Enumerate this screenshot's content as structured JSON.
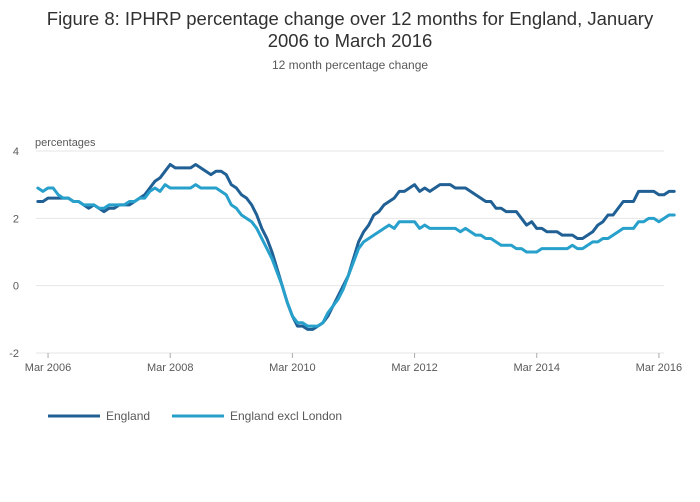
{
  "chart_data": {
    "type": "line",
    "title_line1": "Figure 8: IPHRP percentage change over 12 months for England, January",
    "title_line2": "2006 to March 2016",
    "subtitle": "12 month percentage change",
    "ylabel": "percentages",
    "ylim": [
      -2,
      4
    ],
    "yticks": [
      "4",
      "2",
      "0",
      "-2"
    ],
    "ytick_values": [
      4,
      2,
      0,
      -2
    ],
    "xticks": [
      "Mar 2006",
      "Mar 2008",
      "Mar 2010",
      "Mar 2012",
      "Mar 2014",
      "Mar 2016"
    ],
    "xtick_values": [
      2006.167,
      2008.167,
      2010.167,
      2012.167,
      2014.167,
      2016.167
    ],
    "x_start": 2006.0,
    "x_step": 0.08333333,
    "legend_position": "bottom-left",
    "series": [
      {
        "name": "England",
        "color": "#206095",
        "values": [
          2.5,
          2.5,
          2.6,
          2.6,
          2.6,
          2.6,
          2.6,
          2.5,
          2.5,
          2.4,
          2.3,
          2.4,
          2.3,
          2.2,
          2.3,
          2.3,
          2.4,
          2.4,
          2.4,
          2.5,
          2.6,
          2.7,
          2.9,
          3.1,
          3.2,
          3.4,
          3.6,
          3.5,
          3.5,
          3.5,
          3.5,
          3.6,
          3.5,
          3.4,
          3.3,
          3.4,
          3.4,
          3.3,
          3.0,
          2.9,
          2.7,
          2.6,
          2.4,
          2.1,
          1.7,
          1.4,
          1.0,
          0.5,
          0.0,
          -0.5,
          -0.9,
          -1.2,
          -1.2,
          -1.3,
          -1.3,
          -1.2,
          -1.1,
          -0.9,
          -0.6,
          -0.3,
          0.0,
          0.3,
          0.8,
          1.3,
          1.6,
          1.8,
          2.1,
          2.2,
          2.4,
          2.5,
          2.6,
          2.8,
          2.8,
          2.9,
          3.0,
          2.8,
          2.9,
          2.8,
          2.9,
          3.0,
          3.0,
          3.0,
          2.9,
          2.9,
          2.9,
          2.8,
          2.7,
          2.6,
          2.5,
          2.5,
          2.3,
          2.3,
          2.2,
          2.2,
          2.2,
          2.0,
          1.8,
          1.9,
          1.7,
          1.7,
          1.6,
          1.6,
          1.6,
          1.5,
          1.5,
          1.5,
          1.4,
          1.4,
          1.5,
          1.6,
          1.8,
          1.9,
          2.1,
          2.1,
          2.3,
          2.5,
          2.5,
          2.5,
          2.8,
          2.8,
          2.8,
          2.8,
          2.7,
          2.7,
          2.8,
          2.8
        ]
      },
      {
        "name": "England excl London",
        "color": "#27a0cc",
        "values": [
          2.9,
          2.8,
          2.9,
          2.9,
          2.7,
          2.6,
          2.6,
          2.5,
          2.5,
          2.4,
          2.4,
          2.4,
          2.3,
          2.3,
          2.4,
          2.4,
          2.4,
          2.4,
          2.5,
          2.5,
          2.6,
          2.6,
          2.8,
          2.9,
          2.8,
          3.0,
          2.9,
          2.9,
          2.9,
          2.9,
          2.9,
          3.0,
          2.9,
          2.9,
          2.9,
          2.9,
          2.8,
          2.7,
          2.4,
          2.3,
          2.1,
          2.0,
          1.9,
          1.7,
          1.4,
          1.1,
          0.8,
          0.4,
          0.0,
          -0.5,
          -0.9,
          -1.1,
          -1.1,
          -1.2,
          -1.2,
          -1.2,
          -1.1,
          -0.8,
          -0.6,
          -0.4,
          -0.1,
          0.3,
          0.7,
          1.1,
          1.3,
          1.4,
          1.5,
          1.6,
          1.7,
          1.8,
          1.7,
          1.9,
          1.9,
          1.9,
          1.9,
          1.7,
          1.8,
          1.7,
          1.7,
          1.7,
          1.7,
          1.7,
          1.7,
          1.6,
          1.7,
          1.6,
          1.5,
          1.5,
          1.4,
          1.4,
          1.3,
          1.2,
          1.2,
          1.2,
          1.1,
          1.1,
          1.0,
          1.0,
          1.0,
          1.1,
          1.1,
          1.1,
          1.1,
          1.1,
          1.1,
          1.2,
          1.1,
          1.1,
          1.2,
          1.3,
          1.3,
          1.4,
          1.4,
          1.5,
          1.6,
          1.7,
          1.7,
          1.7,
          1.9,
          1.9,
          2.0,
          2.0,
          1.9,
          2.0,
          2.1,
          2.1
        ]
      }
    ]
  }
}
